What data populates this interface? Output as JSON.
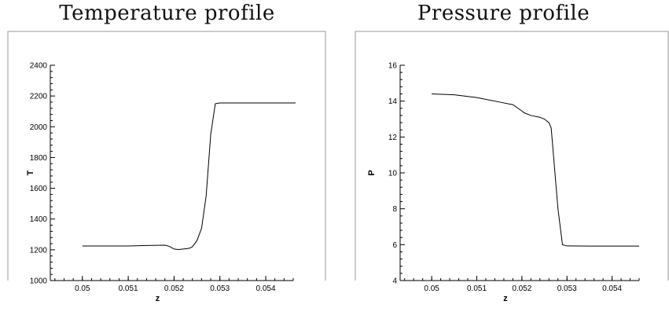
{
  "chart_data": [
    {
      "type": "line",
      "title": "Temperature profile",
      "xlabel": "z",
      "ylabel": "T",
      "xlim": [
        0.0493,
        0.0546
      ],
      "ylim": [
        1000,
        2400
      ],
      "xticks": [
        0.05,
        0.051,
        0.052,
        0.053,
        0.054
      ],
      "xtick_labels": [
        "0.05",
        "0.051",
        "0.052",
        "0.053",
        "0.054"
      ],
      "yticks": [
        1000,
        1200,
        1400,
        1600,
        1800,
        2000,
        2200,
        2400
      ],
      "ytick_labels": [
        "1000",
        "1200",
        "1400",
        "1600",
        "1800",
        "2000",
        "2200",
        "2400"
      ],
      "grid": false,
      "series": [
        {
          "x": [
            0.05,
            0.0505,
            0.051,
            0.0514,
            0.0518,
            0.0519,
            0.052,
            0.0521,
            0.0522,
            0.0523,
            0.05235,
            0.0524,
            0.0525,
            0.05255,
            0.0526,
            0.0527,
            0.05275,
            0.0528,
            0.0529,
            0.053,
            0.0535,
            0.054,
            0.05465
          ],
          "y": [
            1225,
            1225,
            1225,
            1228,
            1230,
            1222,
            1205,
            1202,
            1205,
            1208,
            1212,
            1220,
            1260,
            1300,
            1340,
            1550,
            1750,
            1950,
            2150,
            2155,
            2155,
            2155,
            2155
          ]
        }
      ]
    },
    {
      "type": "line",
      "title": "Pressure profile",
      "xlabel": "z",
      "ylabel": "P",
      "xlim": [
        0.0493,
        0.0546
      ],
      "ylim": [
        4,
        16
      ],
      "xticks": [
        0.05,
        0.051,
        0.052,
        0.053,
        0.054
      ],
      "xtick_labels": [
        "0.05",
        "0.051",
        "0.052",
        "0.053",
        "0.054"
      ],
      "yticks": [
        4,
        6,
        8,
        10,
        12,
        14,
        16
      ],
      "ytick_labels": [
        "4",
        "6",
        "8",
        "10",
        "12",
        "14",
        "16"
      ],
      "grid": false,
      "series": [
        {
          "x": [
            0.05,
            0.0505,
            0.051,
            0.0515,
            0.0518,
            0.052,
            0.05205,
            0.0522,
            0.0524,
            0.0525,
            0.0526,
            0.05265,
            0.0527,
            0.05275,
            0.0528,
            0.0529,
            0.053,
            0.0535,
            0.054,
            0.0546
          ],
          "y": [
            14.4,
            14.35,
            14.2,
            13.95,
            13.8,
            13.45,
            13.35,
            13.2,
            13.1,
            13.0,
            12.8,
            12.5,
            11.0,
            9.5,
            8.0,
            6.0,
            5.93,
            5.92,
            5.92,
            5.92
          ]
        }
      ]
    }
  ]
}
